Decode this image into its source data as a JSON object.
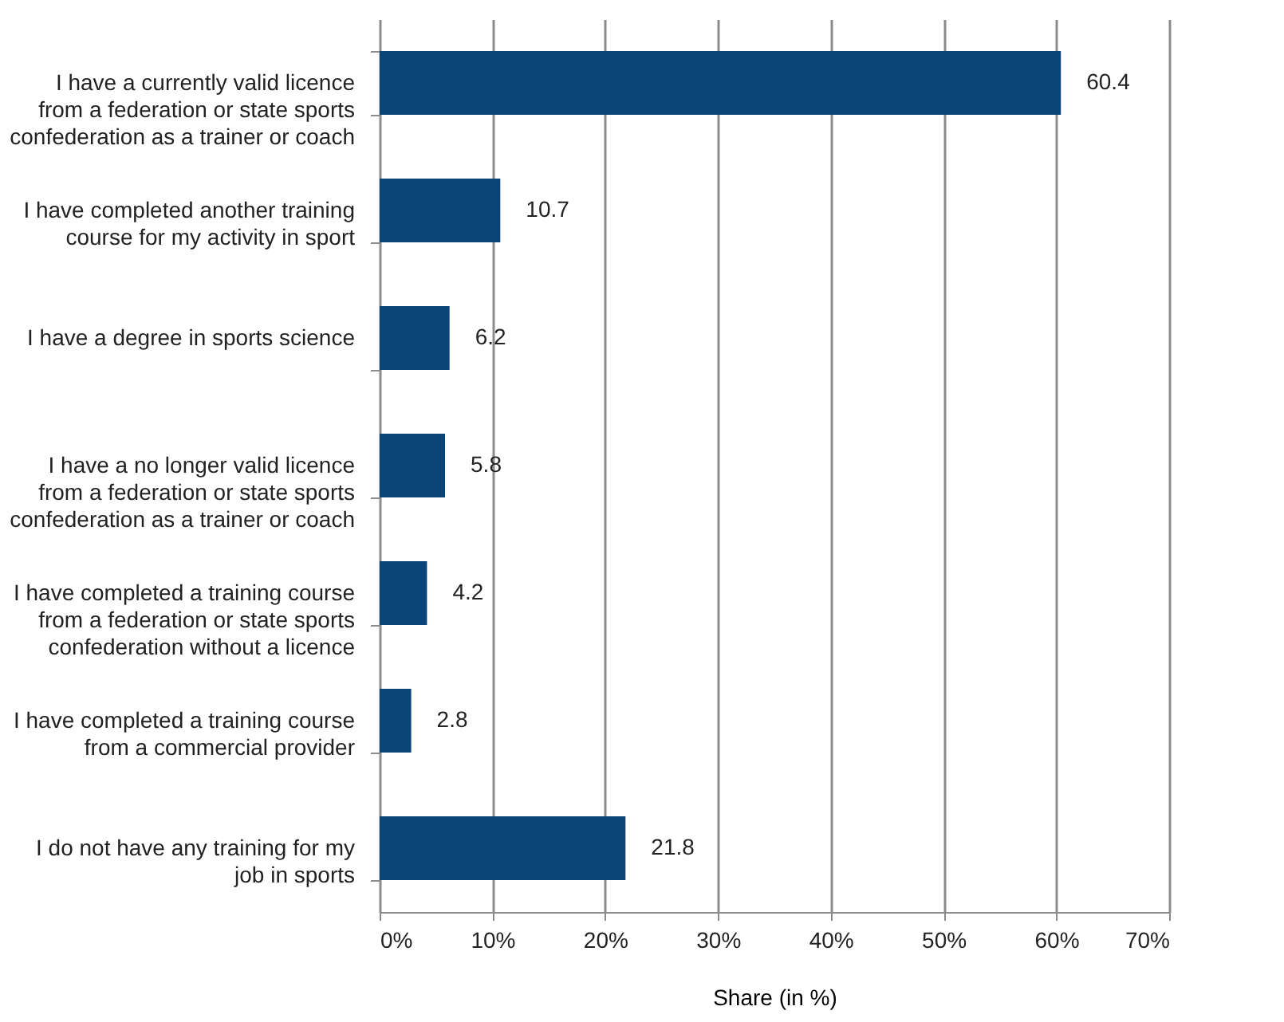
{
  "chart_data": {
    "type": "bar",
    "orientation": "horizontal",
    "xlabel": "Share (in %)",
    "categories": [
      "I have a currently valid licence from a federation or state sports confederation as a trainer or coach",
      "I have completed another training course for my activity in sport",
      "I have a degree in sports science",
      "I have a no longer valid licence from a federation or state sports confederation as a trainer or coach",
      "I have completed a training course from a federation or state sports confederation without a licence",
      "I have completed a training course from a commercial provider",
      "I do not have any training for my job in sports"
    ],
    "values": [
      60.4,
      10.7,
      6.2,
      5.8,
      4.2,
      2.8,
      21.8
    ],
    "color": "#0b4577",
    "data_labels": true,
    "grid": "x",
    "xlim": [
      0,
      70
    ],
    "xticks": [
      {
        "value": 0,
        "label": "0%"
      },
      {
        "value": 10,
        "label": "10%"
      },
      {
        "value": 20,
        "label": "20%"
      },
      {
        "value": 30,
        "label": "30%"
      },
      {
        "value": 40,
        "label": "40%"
      },
      {
        "value": 50,
        "label": "50%"
      },
      {
        "value": 60,
        "label": "60%"
      },
      {
        "value": 70,
        "label": "70%"
      }
    ]
  }
}
